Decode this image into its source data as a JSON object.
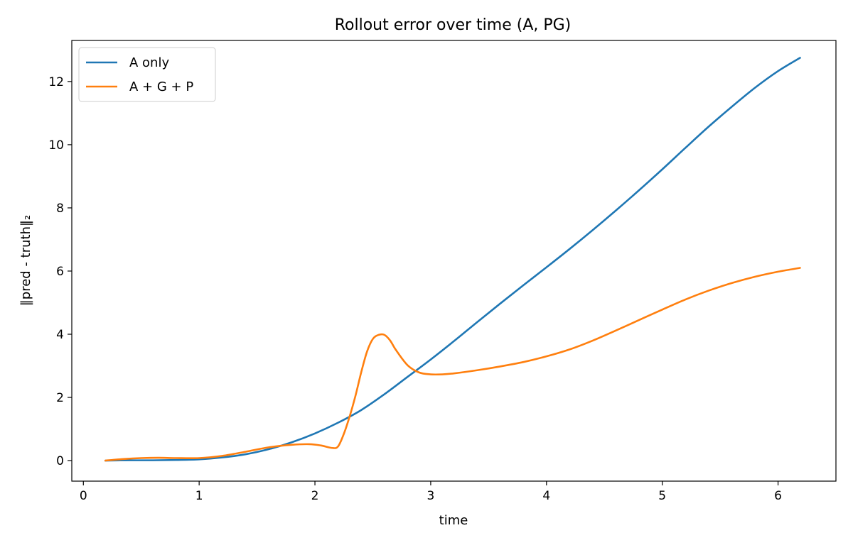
{
  "chart_data": {
    "type": "line",
    "title": "Rollout error over time (A, PG)",
    "xlabel": "time",
    "ylabel": "‖pred - truth‖₂",
    "xlim": [
      -0.1,
      6.5
    ],
    "ylim": [
      -0.65,
      13.3
    ],
    "xticks": [
      0,
      1,
      2,
      3,
      4,
      5,
      6
    ],
    "yticks": [
      0,
      2,
      4,
      6,
      8,
      10,
      12
    ],
    "xtick_labels": [
      "0",
      "1",
      "2",
      "3",
      "4",
      "5",
      "6"
    ],
    "ytick_labels": [
      "0",
      "2",
      "4",
      "6",
      "8",
      "10",
      "12"
    ],
    "grid": false,
    "legend_position": "top-left",
    "series": [
      {
        "name": "A only",
        "color": "#1f77b4",
        "x": [
          0.19,
          0.4,
          0.6,
          0.8,
          1.0,
          1.2,
          1.4,
          1.6,
          1.8,
          2.0,
          2.2,
          2.4,
          2.6,
          2.8,
          3.0,
          3.2,
          3.4,
          3.6,
          3.8,
          4.0,
          4.2,
          4.4,
          4.6,
          4.8,
          5.0,
          5.2,
          5.4,
          5.6,
          5.8,
          6.0,
          6.19
        ],
        "y": [
          0.0,
          0.01,
          0.01,
          0.02,
          0.04,
          0.1,
          0.2,
          0.36,
          0.58,
          0.86,
          1.2,
          1.6,
          2.1,
          2.65,
          3.2,
          3.78,
          4.38,
          4.97,
          5.55,
          6.12,
          6.7,
          7.3,
          7.92,
          8.56,
          9.22,
          9.9,
          10.57,
          11.2,
          11.8,
          12.33,
          12.75
        ]
      },
      {
        "name": "A + G + P",
        "color": "#ff7f0e",
        "x": [
          0.19,
          0.35,
          0.5,
          0.65,
          0.8,
          1.0,
          1.2,
          1.4,
          1.6,
          1.8,
          1.95,
          2.05,
          2.15,
          2.2,
          2.25,
          2.3,
          2.35,
          2.4,
          2.45,
          2.5,
          2.55,
          2.6,
          2.65,
          2.7,
          2.8,
          2.9,
          3.0,
          3.1,
          3.2,
          3.4,
          3.6,
          3.8,
          4.0,
          4.2,
          4.4,
          4.6,
          4.8,
          5.0,
          5.2,
          5.4,
          5.6,
          5.8,
          6.0,
          6.19
        ],
        "y": [
          0.0,
          0.05,
          0.08,
          0.09,
          0.08,
          0.08,
          0.15,
          0.28,
          0.42,
          0.5,
          0.52,
          0.48,
          0.4,
          0.45,
          0.85,
          1.4,
          2.05,
          2.8,
          3.45,
          3.85,
          3.98,
          3.98,
          3.8,
          3.5,
          3.02,
          2.79,
          2.73,
          2.73,
          2.76,
          2.86,
          2.98,
          3.12,
          3.3,
          3.52,
          3.8,
          4.12,
          4.45,
          4.78,
          5.1,
          5.38,
          5.62,
          5.82,
          5.98,
          6.1
        ]
      }
    ]
  }
}
